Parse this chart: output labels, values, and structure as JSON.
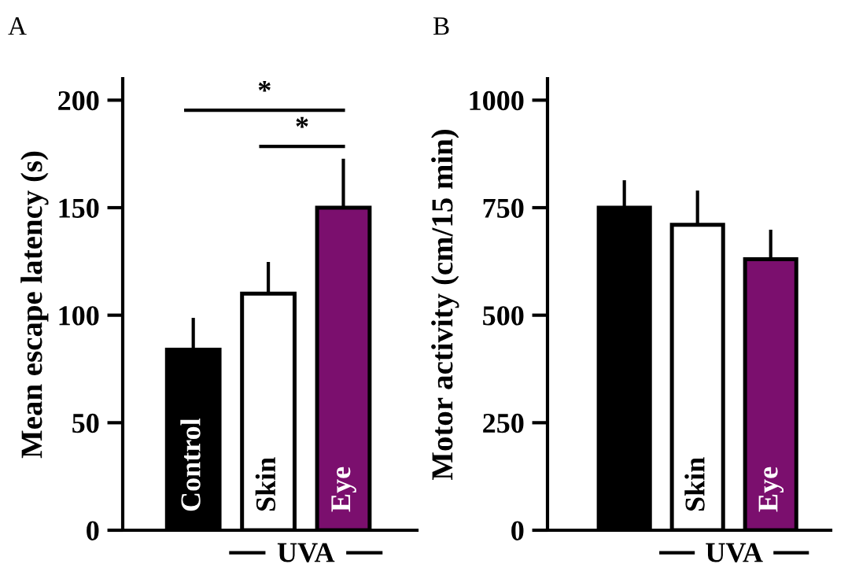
{
  "chart_data": [
    {
      "type": "bar",
      "title": "A",
      "ylabel": "Mean escape latency (s)",
      "categories": [
        "Control",
        "Skin",
        "Eye"
      ],
      "values": [
        84,
        110,
        150
      ],
      "colors": [
        "#000000",
        "#ffffff",
        "#7b0f6e"
      ],
      "errors": [
        [
          84,
          98
        ],
        [
          110,
          124
        ],
        [
          150,
          172
        ]
      ],
      "ylim": [
        0,
        210
      ],
      "yticks": [
        0,
        50,
        100,
        150,
        200
      ],
      "grid": false,
      "legend": false,
      "annotations": [
        "*",
        "*",
        "UVA"
      ]
    },
    {
      "type": "bar",
      "title": "B",
      "ylabel": "Motor activity (cm/15 min)",
      "categories": [
        null,
        "Skin",
        "Eye"
      ],
      "values": [
        750,
        710,
        630
      ],
      "colors": [
        "#000000",
        "#ffffff",
        "#7b0f6e"
      ],
      "errors": [
        [
          750,
          810
        ],
        [
          710,
          786
        ],
        [
          630,
          695
        ]
      ],
      "ylim": [
        0,
        1050
      ],
      "yticks": [
        0,
        250,
        500,
        750,
        1000
      ],
      "grid": false,
      "legend": false,
      "annotations": [
        "UVA"
      ]
    }
  ]
}
